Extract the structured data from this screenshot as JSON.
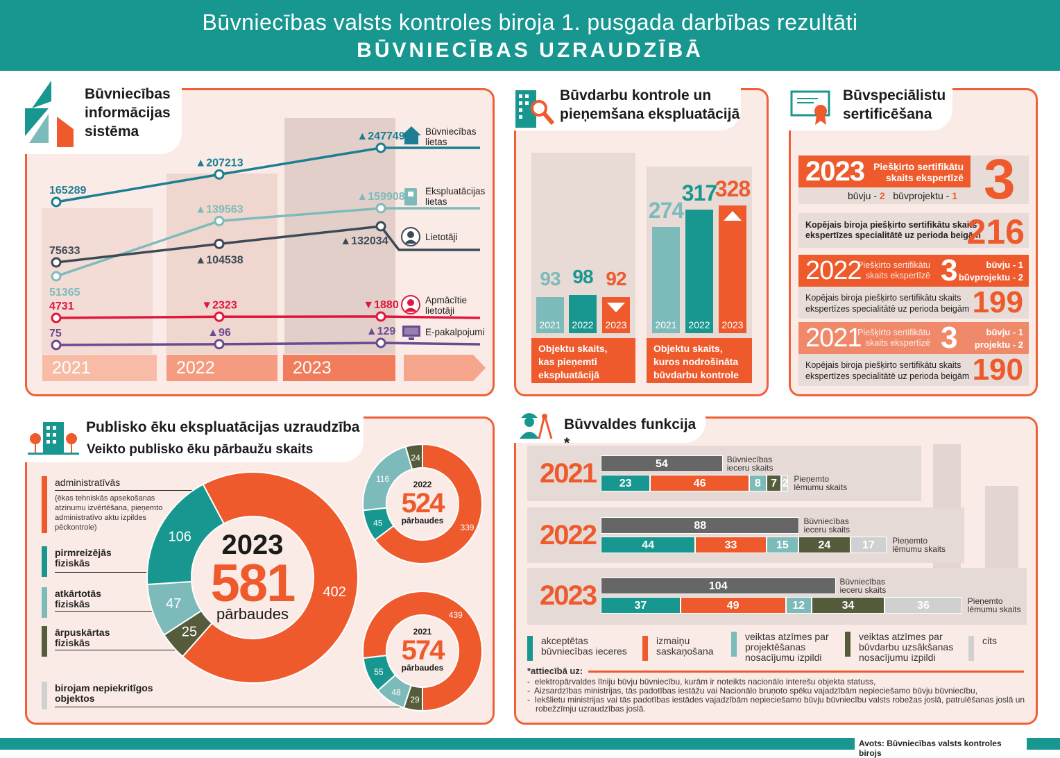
{
  "header": {
    "title": "Būvniecības valsts kontroles biroja 1. pusgada darbības rezultāti",
    "subtitle": "BŪVNIECĪBAS UZRAUDZĪBĀ"
  },
  "colors": {
    "teal": "#17978f",
    "orange": "#ee5a2c",
    "panel_border": "#ef6038",
    "panel_bg": "#fbebe6",
    "light_teal": "#7dbbbb",
    "olive": "#555c3b",
    "gray": "#666666",
    "light_gray": "#d0d0d0"
  },
  "bis": {
    "title_lines": [
      "Būvniecības",
      "informācijas",
      "sistēma"
    ],
    "years": [
      "2021",
      "2022",
      "2023"
    ]
  },
  "chart_data": [
    {
      "type": "line",
      "title": "Būvniecības informācijas sistēma",
      "x": [
        "2021",
        "2022",
        "2023"
      ],
      "series": [
        {
          "name": "Būvniecības lietas",
          "label_lines": [
            "Būvniecības",
            "lietas"
          ],
          "icon": "house-icon",
          "color": "#1b7e93",
          "values": [
            165289,
            207213,
            247749
          ],
          "trend": [
            "",
            "up",
            "up"
          ]
        },
        {
          "name": "Ekspluatācijas lietas",
          "label_lines": [
            "Ekspluatācijas",
            "lietas"
          ],
          "icon": "book-icon",
          "color": "#7dbbbb",
          "values": [
            51365,
            139563,
            159908
          ],
          "trend": [
            "",
            "up",
            "up"
          ]
        },
        {
          "name": "Lietotāji",
          "label_lines": [
            "Lietotāji"
          ],
          "icon": "user-icon",
          "color": "#3d4a56",
          "values": [
            75633,
            104538,
            132034
          ],
          "trend": [
            "",
            "up",
            "up"
          ]
        },
        {
          "name": "Apmācītie lietotāji",
          "label_lines": [
            "Apmācītie",
            "lietotāji"
          ],
          "icon": "trained-user-icon",
          "color": "#e0173d",
          "values": [
            4731,
            2323,
            1880
          ],
          "trend": [
            "",
            "down",
            "down"
          ]
        },
        {
          "name": "E-pakalpojumi",
          "label_lines": [
            "E-pakalpojumi"
          ],
          "icon": "monitor-icon",
          "color": "#6b4a8f",
          "values": [
            75,
            96,
            129
          ],
          "trend": [
            "",
            "up",
            "up"
          ]
        }
      ]
    },
    {
      "type": "bar",
      "title": "Būvdarbu kontrole un pieņemšana ekspluatācijā",
      "categories": [
        "2021",
        "2022",
        "2023"
      ],
      "groups": [
        {
          "caption": "Objektu skaits, kas pieņemti ekspluatācijā",
          "values": [
            93,
            98,
            92
          ],
          "trend_2023": "down"
        },
        {
          "caption": "Objektu skaits, kuros nodrošināta būvdarbu kontrole",
          "values": [
            274,
            317,
            328
          ],
          "trend_2023": "up"
        }
      ]
    },
    {
      "type": "pie",
      "title": "Veikto publisko ēku pārbaužu skaits",
      "categories": [
        "administratīvās",
        "pirmreizējās fiziskās",
        "atkārtotās fiziskās",
        "ārpuskārtas fiziskās"
      ],
      "donuts": [
        {
          "year": "2023",
          "total": "581",
          "unit": "pārbaudes",
          "values": {
            "administratīvās": 402,
            "ārpuskārtas fiziskās": 25,
            "atkārtotās fiziskās": 47,
            "pirmreizējās fiziskās": 106
          }
        },
        {
          "year": "2022",
          "total": "524",
          "unit": "pārbaudes",
          "values": {
            "administratīvās": 339,
            "pirmreizējās fiziskās": 45,
            "atkārtotās fiziskās": 116,
            "ārpuskārtas fiziskās": 24
          }
        },
        {
          "year": "2021",
          "total": "574",
          "unit": "pārbaudes",
          "values": {
            "ārpuskārtas fiziskās": 29,
            "atkārtotās fiziskās": 48,
            "pirmreizējās fiziskās": 55,
            "administratīvās": 439
          }
        }
      ]
    },
    {
      "type": "bar",
      "title": "Būvvaldes funkcija *",
      "stacked": true,
      "rows": [
        {
          "year": "2021",
          "ieceres": 54,
          "lemumi": [
            23,
            46,
            8,
            7,
            2
          ]
        },
        {
          "year": "2022",
          "ieceres": 88,
          "lemumi": [
            44,
            33,
            15,
            24,
            17
          ]
        },
        {
          "year": "2023",
          "ieceres": 104,
          "lemumi": [
            37,
            49,
            12,
            34,
            36
          ]
        }
      ],
      "segment_names": [
        "akceptētas būvniecības ieceres",
        "izmaiņu saskaņošana",
        "veiktas atzīmes par projektēšanas nosacījumu izpildi",
        "veiktas atzīmes par būvdarbu uzsākšanas nosacījumu izpildi",
        "cits"
      ]
    }
  ],
  "buvdarbi": {
    "title_lines": [
      "Būvdarbu kontrole un",
      "pieņemšana ekspluatācijā"
    ],
    "caption1_lines": [
      "Objektu skaits,",
      "kas pieņemti",
      "ekspluatācijā"
    ],
    "caption2_lines": [
      "Objektu skaits,",
      "kuros nodrošināta",
      "būvdarbu kontrole"
    ]
  },
  "cert": {
    "title_lines": [
      "Būvspeciālistu",
      "sertificēšana"
    ],
    "y2023": {
      "year": "2023",
      "label_lines": [
        "Piešķirto sertifikātu",
        "skaits ekspertīzē"
      ],
      "count": "3",
      "buvju": "būvju - ",
      "buvju_n": "2",
      "proj": "būvprojektu - ",
      "proj_n": "1",
      "total_text_lines": [
        "Kopējais biroja piešķirto sertifikātu skaits",
        "ekspertīzes specialitātē uz perioda beigām"
      ],
      "total": "216"
    },
    "y2022": {
      "year": "2022",
      "label_lines": [
        "Piešķirto sertifikātu",
        "skaits ekspertīzē"
      ],
      "count": "3",
      "split_lines": [
        "būvju - 1",
        "būvprojektu - 2"
      ],
      "total_text_lines": [
        "Kopējais biroja piešķirto sertifikātu skaits",
        "ekspertīzes specialitātē uz perioda beigām"
      ],
      "total": "199"
    },
    "y2021": {
      "year": "2021",
      "label_lines": [
        "Piešķirto sertifikātu",
        "skaits ekspertīzē"
      ],
      "count": "3",
      "split_lines": [
        "būvju - 1",
        "projektu - 2"
      ],
      "total_text_lines": [
        "Kopējais biroja piešķirto sertifikātu skaits",
        "ekspertīzes specialitātē uz perioda beigām"
      ],
      "total": "190"
    }
  },
  "publ": {
    "title": "Publisko ēku ekspluatācijas uzraudzība",
    "subtitle": "Veikto publisko ēku pārbaužu skaits",
    "legend": [
      {
        "label": "administratīvās",
        "note": "(ēkas tehniskās apsekošanas atzinumu izvērtēšana, pieņemto administratīvo aktu izpildes pēckontrole)"
      },
      {
        "label": "pirmreizējās fiziskās"
      },
      {
        "label": "atkārtotās fiziskās"
      },
      {
        "label": "ārpuskārtas fiziskās"
      },
      {
        "label": "birojam nepiekritīgos objektos"
      }
    ]
  },
  "buvv": {
    "title": "Būvvaldes funkcija *",
    "ieceres_label_lines": [
      "Būvniecības",
      "ieceru skaits"
    ],
    "lemumi_label_lines": [
      "Pieņemto",
      "lēmumu skaits"
    ],
    "legend": [
      "akceptētas būvniecības ieceres",
      "izmaiņu saskaņošana",
      "veiktas atzīmes par projektēšanas nosacījumu izpildi",
      "veiktas atzīmes par būvdarbu uzsākšanas nosacījumu izpildi",
      "cits"
    ],
    "footnote_title": "*attiecībā uz:",
    "footnotes": [
      "elektropārvaldes līniju būvju būvniecību, kurām ir noteikts nacionālo interešu objekta statuss,",
      "Aizsardzības ministrijas, tās padotības iestāžu vai Nacionālo bruņoto spēku vajadzībām nepieciešamo būvju būvniecību,",
      "Iekšlietu ministrijas vai tās padotības iestādes vajadzībām nepieciešamo būvju būvniecību valsts robežas joslā, patrulēšanas joslā un robežzīmju uzraudzības joslā."
    ]
  },
  "source": "Avots: Būvniecības valsts kontroles birojs"
}
